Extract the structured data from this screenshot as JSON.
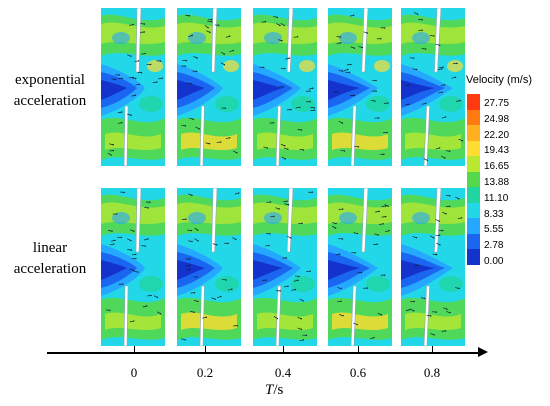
{
  "row_labels": [
    {
      "line1": "exponential",
      "line2": "acceleration"
    },
    {
      "line1": "linear",
      "line2": "acceleration"
    }
  ],
  "legend": {
    "title": "Velocity (m/s)",
    "labels": [
      "27.75",
      "24.98",
      "22.20",
      "19.43",
      "16.65",
      "13.88",
      "11.10",
      "8.33",
      "5.55",
      "2.78",
      "0.00"
    ],
    "colors": [
      "#ff3a10",
      "#ff7a10",
      "#ffb020",
      "#ffdd30",
      "#b8e830",
      "#55d84a",
      "#1fd6a0",
      "#22d8e8",
      "#25a8ff",
      "#1a66f0",
      "#1432cc"
    ]
  },
  "time_axis": {
    "ticks": [
      "0",
      "0.2",
      "0.4",
      "0.6",
      "0.8"
    ],
    "title_var": "T",
    "title_unit": "/s"
  }
}
